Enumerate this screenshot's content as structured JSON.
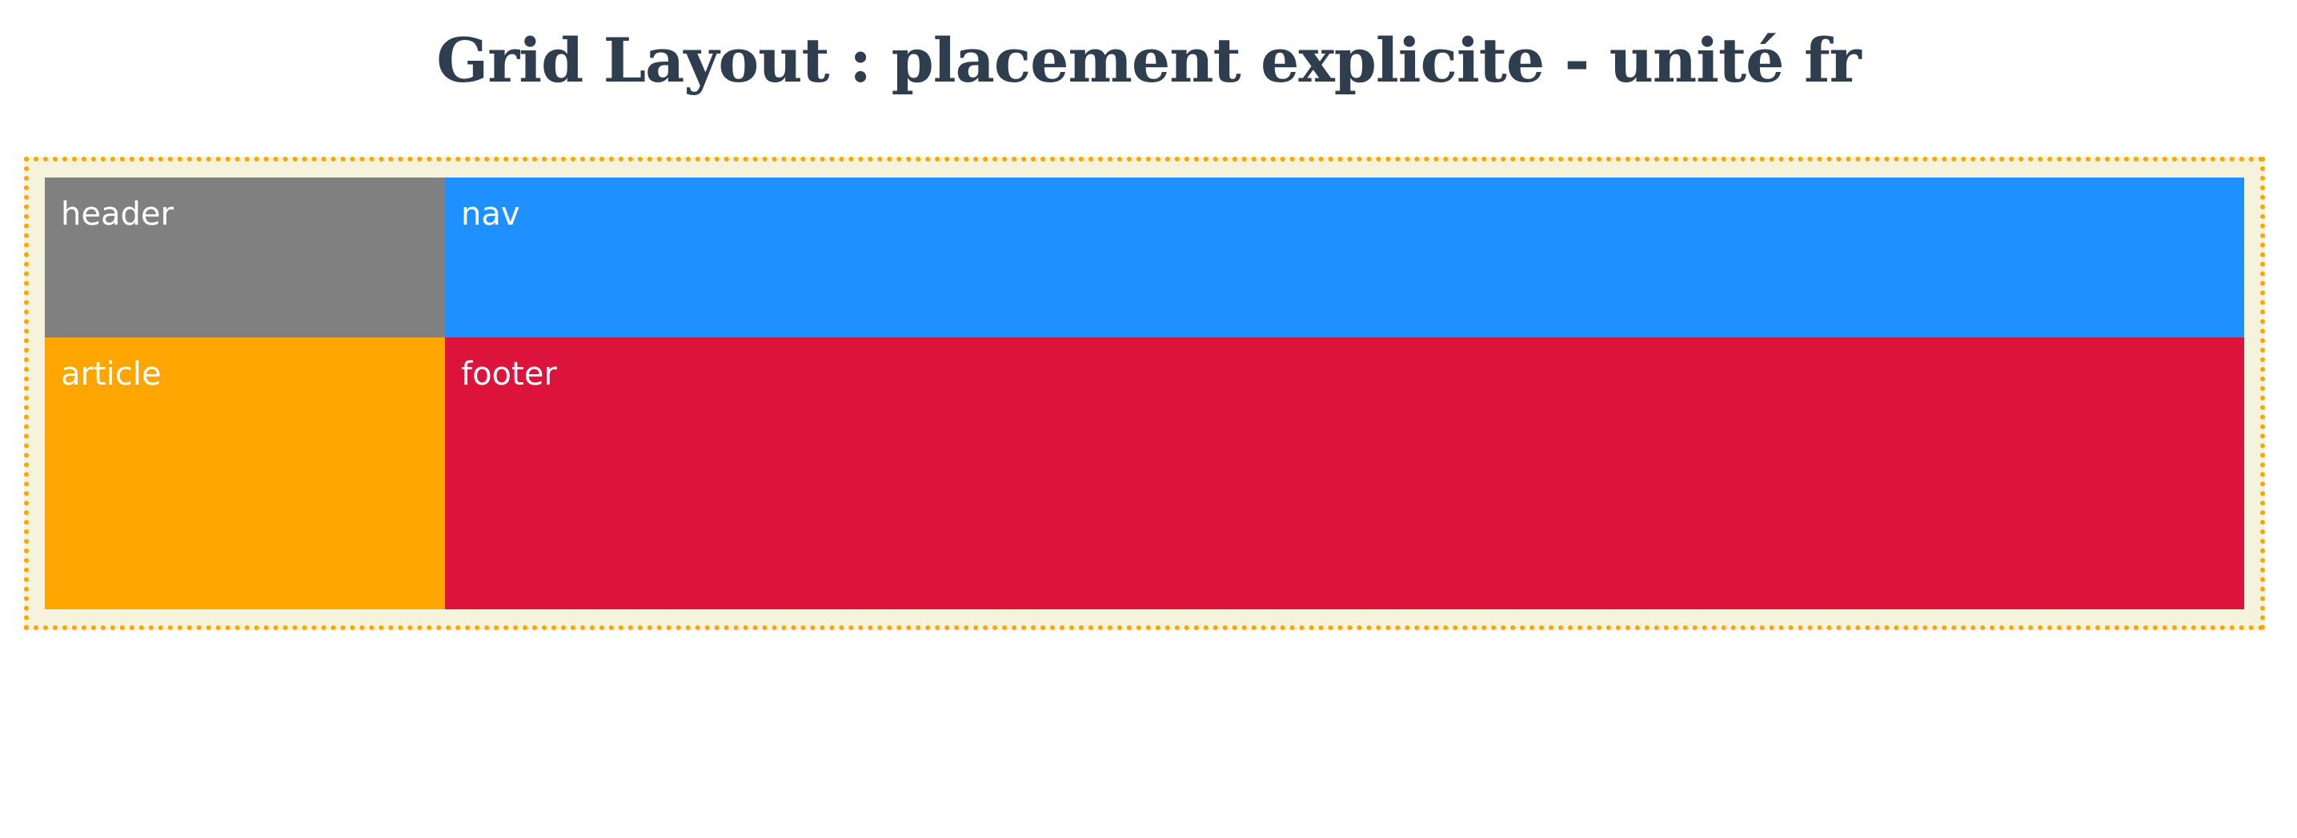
{
  "page": {
    "title": "Grid Layout : placement explicite - unité fr"
  },
  "grid": {
    "cells": {
      "header": {
        "label": "header",
        "color": "#808080"
      },
      "nav": {
        "label": "nav",
        "color": "#1e90ff"
      },
      "article": {
        "label": "article",
        "color": "#ffa500"
      },
      "footer": {
        "label": "footer",
        "color": "#dc143c"
      }
    },
    "container_border_color": "#ffa500",
    "container_background": "#f5f3dc"
  }
}
